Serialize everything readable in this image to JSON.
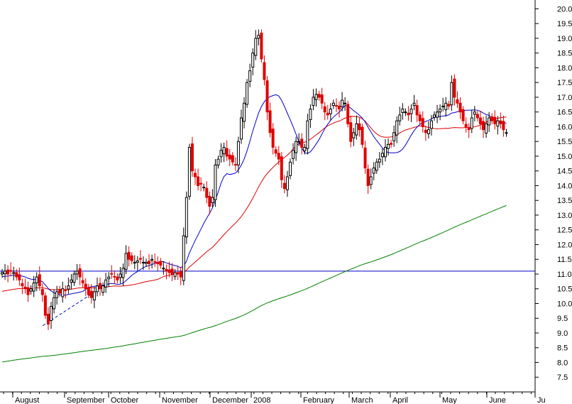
{
  "chart_data": {
    "type": "line",
    "chart_style": "candlestick",
    "title": "",
    "xlabel": "",
    "ylabel": "",
    "ylim": [
      7.0,
      20.3
    ],
    "y_ticks": [
      "7.5",
      "8.0",
      "8.5",
      "9.0",
      "9.5",
      "10.0",
      "10.5",
      "11.0",
      "11.5",
      "12.0",
      "12.5",
      "13.0",
      "13.5",
      "14.0",
      "14.5",
      "15.0",
      "15.5",
      "16.0",
      "16.5",
      "17.0",
      "17.5",
      "18.0",
      "18.5",
      "19.0",
      "19.5",
      "20.0"
    ],
    "x_months": [
      "August",
      "September",
      "October",
      "November",
      "December",
      "2008",
      "February",
      "March",
      "April",
      "May",
      "June",
      "Ju"
    ],
    "grid": false,
    "legend": "none",
    "colors": {
      "up_candle": "#000000",
      "down_candle": "#e00000",
      "short_ma": "#0000cc",
      "medium_ma": "#dd0000",
      "long_ma": "#008000",
      "reference_line": "#0000cc",
      "trendline": "#0000cc"
    },
    "reference_line": 11.1,
    "trendline": {
      "x": [
        0.58,
        1.5
      ],
      "y": [
        9.25,
        10.3
      ]
    },
    "candles_close": [
      11.05,
      11.1,
      11.0,
      11.1,
      11.05,
      10.9,
      10.8,
      10.6,
      10.5,
      10.3,
      10.5,
      10.7,
      10.9,
      10.6,
      10.3,
      9.6,
      9.3,
      9.9,
      10.2,
      10.4,
      10.35,
      10.5,
      10.45,
      10.6,
      10.8,
      11.0,
      11.1,
      10.9,
      10.7,
      10.5,
      10.3,
      10.2,
      10.4,
      10.6,
      10.5,
      10.6,
      10.8,
      10.9,
      11.0,
      10.9,
      10.8,
      11.0,
      11.2,
      11.7,
      11.5,
      11.45,
      11.4,
      11.45,
      11.5,
      11.4,
      11.4,
      11.35,
      11.5,
      11.4,
      11.35,
      11.3,
      11.2,
      11.1,
      11.05,
      11.0,
      11.05,
      11.0,
      10.9,
      12.3,
      13.6,
      15.3,
      14.5,
      14.3,
      14.0,
      14.05,
      13.95,
      13.6,
      13.3,
      13.6,
      14.7,
      14.9,
      15.2,
      15.3,
      15.0,
      14.9,
      14.8,
      14.7,
      15.5,
      16.3,
      16.8,
      17.5,
      17.9,
      18.5,
      19.0,
      19.1,
      18.3,
      17.6,
      16.5,
      15.8,
      15.3,
      15.1,
      14.9,
      14.2,
      13.9,
      14.3,
      14.8,
      15.2,
      15.5,
      15.5,
      15.3,
      15.3,
      16.2,
      16.6,
      17.0,
      17.1,
      17.0,
      16.8,
      16.5,
      16.4,
      16.6,
      16.8,
      16.7,
      16.6,
      16.9,
      16.8,
      16.1,
      15.5,
      15.8,
      16.1,
      15.9,
      15.4,
      14.6,
      14.0,
      14.3,
      14.6,
      14.8,
      14.9,
      15.1,
      15.3,
      15.4,
      15.4,
      15.8,
      16.2,
      16.4,
      16.6,
      16.5,
      16.4,
      16.6,
      16.8,
      16.4,
      16.2,
      16.0,
      15.8,
      15.9,
      16.2,
      16.4,
      16.5,
      16.6,
      16.7,
      16.8,
      16.7,
      17.5,
      17.0,
      16.8,
      16.5,
      16.2,
      16.0,
      15.9,
      16.3,
      16.5,
      16.3,
      16.1,
      15.9,
      16.1,
      16.3,
      16.2,
      16.1,
      16.2,
      16.1,
      15.9,
      15.8
    ]
  },
  "axes": {
    "y_tick_labels": [
      "7.5",
      "8.0",
      "8.5",
      "9.0",
      "9.5",
      "10.0",
      "10.5",
      "11.0",
      "11.5",
      "12.0",
      "12.5",
      "13.0",
      "13.5",
      "14.0",
      "14.5",
      "15.0",
      "15.5",
      "16.0",
      "16.5",
      "17.0",
      "17.5",
      "18.0",
      "18.5",
      "19.0",
      "19.5",
      "20.0"
    ],
    "x_month_labels": [
      "August",
      "September",
      "October",
      "November",
      "December",
      "2008",
      "February",
      "March",
      "April",
      "May",
      "June",
      "Ju"
    ]
  }
}
